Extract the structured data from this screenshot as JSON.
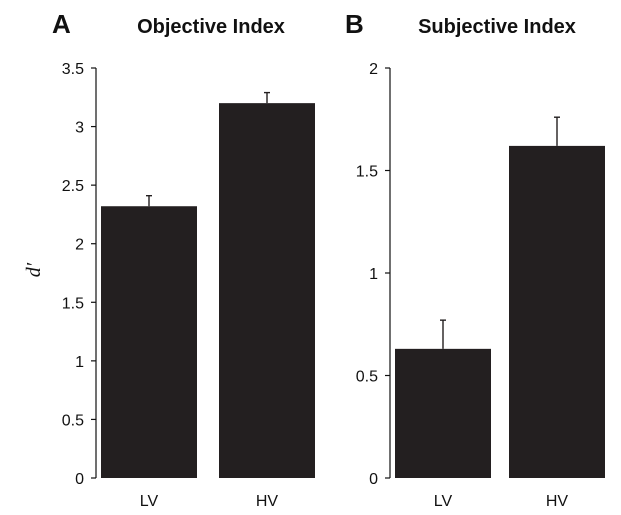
{
  "chart_data": [
    {
      "type": "bar",
      "panel_label": "A",
      "title": "Objective Index",
      "ylabel": "d′",
      "categories": [
        "LV",
        "HV"
      ],
      "values": [
        2.32,
        3.2
      ],
      "error_upper": [
        2.41,
        3.29
      ],
      "ylim": [
        0,
        3.5
      ],
      "yticks": [
        "0",
        "0.5",
        "1",
        "1.5",
        "2",
        "2.5",
        "3",
        "3.5"
      ],
      "bar_color": "#231f20",
      "grid": false
    },
    {
      "type": "bar",
      "panel_label": "B",
      "title": "Subjective Index",
      "ylabel": "",
      "categories": [
        "LV",
        "HV"
      ],
      "values": [
        0.63,
        1.62
      ],
      "error_upper": [
        0.77,
        1.76
      ],
      "ylim": [
        0,
        2
      ],
      "yticks": [
        "0",
        "0.5",
        "1",
        "1.5",
        "2"
      ],
      "bar_color": "#231f20",
      "grid": false
    }
  ]
}
